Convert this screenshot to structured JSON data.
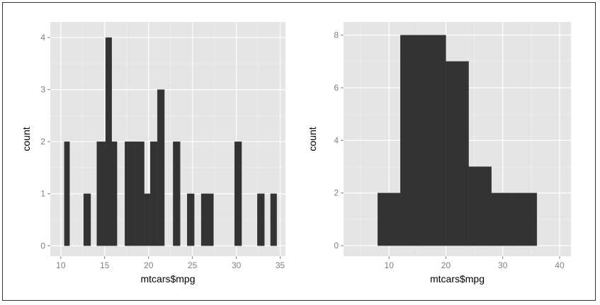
{
  "chart_data": [
    {
      "type": "bar",
      "subtype": "histogram",
      "xlabel": "mtcars$mpg",
      "ylabel": "count",
      "xlim": [
        8.8,
        35.6
      ],
      "ylim": [
        -0.2,
        4.3
      ],
      "xticks": [
        10,
        15,
        20,
        25,
        30,
        35
      ],
      "yticks": [
        0,
        1,
        2,
        3,
        4
      ],
      "grid": true,
      "bar_color": "#333333",
      "panel_color": "#e5e5e5",
      "bins": [
        {
          "x0": 10.4,
          "x1": 11.0,
          "count": 2
        },
        {
          "x0": 11.0,
          "x1": 12.6,
          "count": 0
        },
        {
          "x0": 12.6,
          "x1": 13.4,
          "count": 1
        },
        {
          "x0": 13.4,
          "x1": 14.1,
          "count": 0
        },
        {
          "x0": 14.1,
          "x1": 15.1,
          "count": 2
        },
        {
          "x0": 15.1,
          "x1": 15.8,
          "count": 4
        },
        {
          "x0": 15.8,
          "x1": 16.4,
          "count": 2
        },
        {
          "x0": 16.4,
          "x1": 17.3,
          "count": 0
        },
        {
          "x0": 17.3,
          "x1": 18.4,
          "count": 2
        },
        {
          "x0": 18.4,
          "x1": 19.5,
          "count": 2
        },
        {
          "x0": 19.5,
          "x1": 20.2,
          "count": 1
        },
        {
          "x0": 20.2,
          "x1": 21.0,
          "count": 2
        },
        {
          "x0": 21.0,
          "x1": 21.8,
          "count": 3
        },
        {
          "x0": 21.8,
          "x1": 22.8,
          "count": 0
        },
        {
          "x0": 22.8,
          "x1": 23.6,
          "count": 2
        },
        {
          "x0": 23.6,
          "x1": 24.4,
          "count": 0
        },
        {
          "x0": 24.4,
          "x1": 25.2,
          "count": 1
        },
        {
          "x0": 25.2,
          "x1": 26.0,
          "count": 0
        },
        {
          "x0": 26.0,
          "x1": 26.8,
          "count": 1
        },
        {
          "x0": 26.8,
          "x1": 27.4,
          "count": 1
        },
        {
          "x0": 27.4,
          "x1": 29.8,
          "count": 0
        },
        {
          "x0": 29.8,
          "x1": 30.6,
          "count": 2
        },
        {
          "x0": 30.6,
          "x1": 32.4,
          "count": 0
        },
        {
          "x0": 32.4,
          "x1": 33.2,
          "count": 1
        },
        {
          "x0": 33.2,
          "x1": 33.9,
          "count": 0
        },
        {
          "x0": 33.9,
          "x1": 34.6,
          "count": 1
        }
      ]
    },
    {
      "type": "bar",
      "subtype": "histogram",
      "xlabel": "mtcars$mpg",
      "ylabel": "count",
      "xlim": [
        2,
        42
      ],
      "ylim": [
        -0.4,
        8.5
      ],
      "xticks": [
        10,
        20,
        30,
        40
      ],
      "yticks": [
        0,
        2,
        4,
        6,
        8
      ],
      "grid": true,
      "bar_color": "#333333",
      "panel_color": "#e5e5e5",
      "bins": [
        {
          "x0": 8,
          "x1": 12,
          "count": 2
        },
        {
          "x0": 12,
          "x1": 16,
          "count": 8
        },
        {
          "x0": 16,
          "x1": 20,
          "count": 8
        },
        {
          "x0": 20,
          "x1": 24,
          "count": 7
        },
        {
          "x0": 24,
          "x1": 28,
          "count": 3
        },
        {
          "x0": 28,
          "x1": 32,
          "count": 2
        },
        {
          "x0": 32,
          "x1": 36,
          "count": 2
        }
      ]
    }
  ]
}
